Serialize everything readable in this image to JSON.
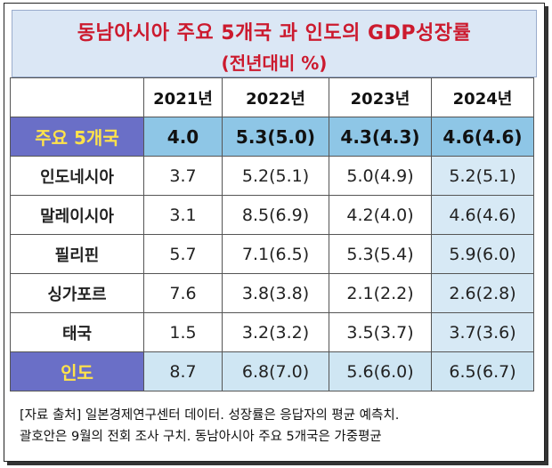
{
  "title": {
    "line1": "동남아시아 주요 5개국 과 인도의 GDP성장률",
    "line2": "(전년대비 %)"
  },
  "columns": [
    "2021년",
    "2022년",
    "2023년",
    "2024년"
  ],
  "rows": [
    {
      "label": "주요 5개국",
      "values": [
        "4.0",
        "5.3(5.0)",
        "4.3(4.3)",
        "4.6(4.6)"
      ]
    },
    {
      "label": "인도네시아",
      "values": [
        "3.7",
        "5.2(5.1)",
        "5.0(4.9)",
        "5.2(5.1)"
      ]
    },
    {
      "label": "말레이시아",
      "values": [
        "3.1",
        "8.5(6.9)",
        "4.2(4.0)",
        "4.6(4.6)"
      ]
    },
    {
      "label": "필리핀",
      "values": [
        "5.7",
        "7.1(6.5)",
        "5.3(5.4)",
        "5.9(6.0)"
      ]
    },
    {
      "label": "싱가포르",
      "values": [
        "7.6",
        "3.8(3.8)",
        "2.1(2.2)",
        "2.6(2.8)"
      ]
    },
    {
      "label": "태국",
      "values": [
        "1.5",
        "3.2(3.2)",
        "3.5(3.7)",
        "3.7(3.6)"
      ]
    },
    {
      "label": "인도",
      "values": [
        "8.7",
        "6.8(7.0)",
        "5.6(6.0)",
        "6.5(6.7)"
      ]
    }
  ],
  "note": {
    "line1": "[자료 출처] 일본경제연구센터 데이터. 성장률은 응답자의 평균 예측치.",
    "line2": "괄호안은 9월의 전회 조사 구치. 동남아시아 주요 5개국은 가중평균"
  },
  "colors": {
    "title_text": "#cc1a2e",
    "title_bg": "#dbe7f5",
    "highlight_row": "#8ec6e6",
    "accent_label_bg": "#6a6fc7",
    "accent_label_text": "#ffe34a",
    "shade_column": "#d7e9f5"
  }
}
